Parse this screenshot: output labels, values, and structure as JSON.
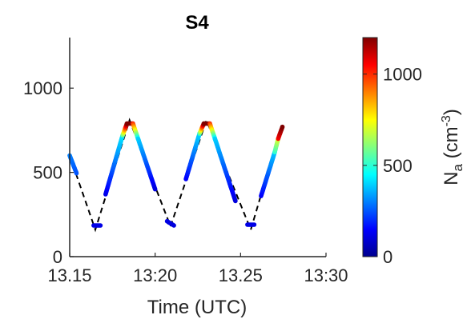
{
  "chart_data": {
    "type": "scatter",
    "title": "S4",
    "xlabel": "Time (UTC)",
    "ylabel": "",
    "xlim": [
      13.15,
      13.3
    ],
    "ylim": [
      0,
      1300
    ],
    "x_ticks": [
      13.15,
      13.2,
      13.25,
      13.3
    ],
    "x_tick_labels": [
      "13.15",
      "13:20",
      "13.25",
      "13:30"
    ],
    "y_ticks": [
      0,
      500,
      1000
    ],
    "y_tick_labels": [
      "0",
      "500",
      "1000"
    ],
    "grid": false,
    "colorbar": {
      "label_main": "N",
      "label_sub": "a",
      "label_unit_pre": " (cm",
      "label_sup": "-3",
      "label_unit_post": ")",
      "range": [
        0,
        1200
      ],
      "ticks": [
        0,
        500,
        1000
      ],
      "tick_labels": [
        "0",
        "500",
        "1000"
      ],
      "colormap": "jet"
    },
    "line_style": "dashed",
    "line_color": "#000000",
    "line_x": [
      13.15,
      13.165,
      13.185,
      13.209,
      13.23,
      13.256,
      13.274
    ],
    "line_y": [
      600,
      160,
      810,
      180,
      810,
      160,
      780
    ],
    "segments": [
      {
        "x0": 13.15,
        "x1": 13.154,
        "y0": 600,
        "y1": 495,
        "c0": 300,
        "c1": 250
      },
      {
        "x0": 13.164,
        "x1": 13.168,
        "y0": 185,
        "y1": 185,
        "c0": 120,
        "c1": 120
      },
      {
        "x0": 13.171,
        "x1": 13.181,
        "y0": 370,
        "y1": 720,
        "c0": 120,
        "c1": 420
      },
      {
        "x0": 13.181,
        "x1": 13.1835,
        "y0": 720,
        "y1": 790,
        "c0": 560,
        "c1": 1200
      },
      {
        "x0": 13.1835,
        "x1": 13.187,
        "y0": 790,
        "y1": 790,
        "c0": 1200,
        "c1": 1200
      },
      {
        "x0": 13.187,
        "x1": 13.19,
        "y0": 790,
        "y1": 700,
        "c0": 1000,
        "c1": 440
      },
      {
        "x0": 13.19,
        "x1": 13.2,
        "y0": 700,
        "y1": 400,
        "c0": 400,
        "c1": 110
      },
      {
        "x0": 13.207,
        "x1": 13.211,
        "y0": 210,
        "y1": 185,
        "c0": 120,
        "c1": 110
      },
      {
        "x0": 13.218,
        "x1": 13.226,
        "y0": 460,
        "y1": 730,
        "c0": 140,
        "c1": 400
      },
      {
        "x0": 13.226,
        "x1": 13.2285,
        "y0": 730,
        "y1": 790,
        "c0": 520,
        "c1": 1200
      },
      {
        "x0": 13.2285,
        "x1": 13.232,
        "y0": 790,
        "y1": 790,
        "c0": 1200,
        "c1": 1200
      },
      {
        "x0": 13.232,
        "x1": 13.235,
        "y0": 790,
        "y1": 700,
        "c0": 1000,
        "c1": 430
      },
      {
        "x0": 13.235,
        "x1": 13.247,
        "y0": 700,
        "y1": 330,
        "c0": 400,
        "c1": 110
      },
      {
        "x0": 13.254,
        "x1": 13.258,
        "y0": 190,
        "y1": 190,
        "c0": 120,
        "c1": 120
      },
      {
        "x0": 13.262,
        "x1": 13.27,
        "y0": 360,
        "y1": 620,
        "c0": 140,
        "c1": 380
      },
      {
        "x0": 13.27,
        "x1": 13.272,
        "y0": 620,
        "y1": 700,
        "c0": 500,
        "c1": 700
      },
      {
        "x0": 13.272,
        "x1": 13.2745,
        "y0": 700,
        "y1": 770,
        "c0": 1050,
        "c1": 1200
      }
    ]
  }
}
